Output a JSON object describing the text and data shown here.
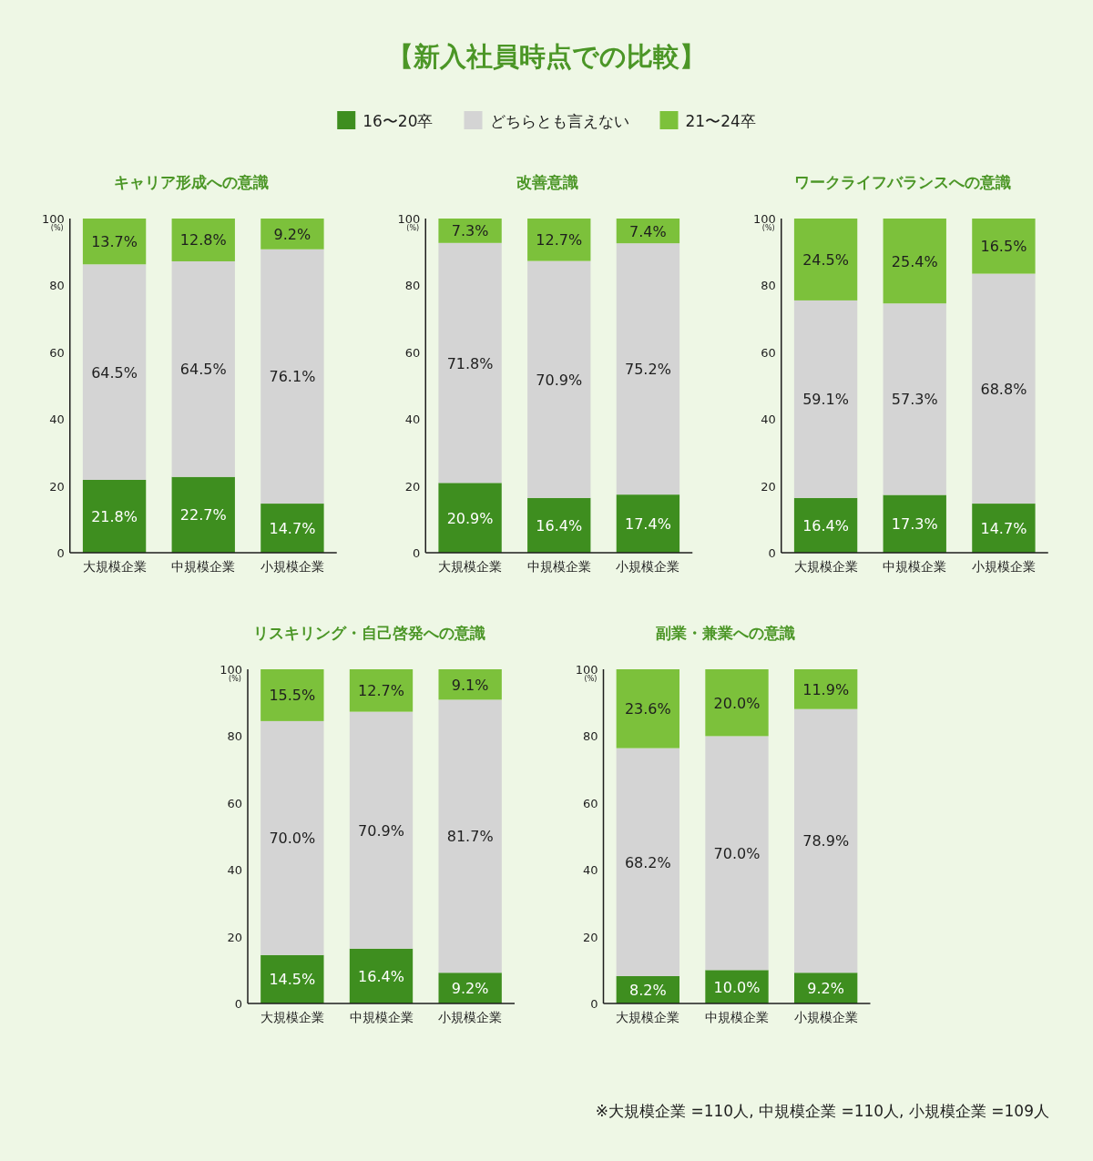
{
  "chart_data": [
    {
      "type": "other",
      "title": "【新入社員時点での比較】",
      "annotations": [
        "※大規模企業 =110人, 中規模企業 =110人, 小規模企業 =109人"
      ]
    },
    {
      "type": "bar",
      "title": "キャリア形成への意識",
      "stacked": true,
      "legend": "top",
      "categories": [
        "大規模企業",
        "中規模企業",
        "小規模企業"
      ],
      "ylim": [
        0,
        100
      ],
      "yticks": [
        0,
        20,
        40,
        60,
        80,
        100
      ],
      "ylabel": "(%)",
      "series": [
        {
          "name": "16〜20卒",
          "color": "#3e8e1f",
          "values": [
            21.8,
            22.7,
            14.7
          ],
          "value_labels": [
            "21.8%",
            "22.7%",
            "14.7%"
          ]
        },
        {
          "name": "どちらとも言えない",
          "color": "#d4d4d4",
          "values": [
            64.5,
            64.5,
            76.1
          ],
          "value_labels": [
            "64.5%",
            "64.5%",
            "76.1%"
          ]
        },
        {
          "name": "21〜24卒",
          "color": "#7cc13b",
          "values": [
            13.7,
            12.8,
            9.2
          ],
          "value_labels": [
            "13.7%",
            "12.8%",
            "9.2%"
          ]
        }
      ]
    },
    {
      "type": "bar",
      "title": "改善意識",
      "stacked": true,
      "categories": [
        "大規模企業",
        "中規模企業",
        "小規模企業"
      ],
      "ylim": [
        0,
        100
      ],
      "yticks": [
        0,
        20,
        40,
        60,
        80,
        100
      ],
      "ylabel": "(%)",
      "series": [
        {
          "color": "#3e8e1f",
          "values": [
            20.9,
            16.4,
            17.4
          ],
          "value_labels": [
            "20.9%",
            "16.4%",
            "17.4%"
          ]
        },
        {
          "color": "#d4d4d4",
          "values": [
            71.8,
            70.9,
            75.2
          ],
          "value_labels": [
            "71.8%",
            "70.9%",
            "75.2%"
          ]
        },
        {
          "color": "#7cc13b",
          "values": [
            7.3,
            12.7,
            7.4
          ],
          "value_labels": [
            "7.3%",
            "12.7%",
            "7.4%"
          ]
        }
      ]
    },
    {
      "type": "bar",
      "title": "ワークライフバランスへの意識",
      "stacked": true,
      "categories": [
        "大規模企業",
        "中規模企業",
        "小規模企業"
      ],
      "ylim": [
        0,
        100
      ],
      "yticks": [
        0,
        20,
        40,
        60,
        80,
        100
      ],
      "ylabel": "(%)",
      "series": [
        {
          "color": "#3e8e1f",
          "values": [
            16.4,
            17.3,
            14.7
          ],
          "value_labels": [
            "16.4%",
            "17.3%",
            "14.7%"
          ]
        },
        {
          "color": "#d4d4d4",
          "values": [
            59.1,
            57.3,
            68.8
          ],
          "value_labels": [
            "59.1%",
            "57.3%",
            "68.8%"
          ]
        },
        {
          "color": "#7cc13b",
          "values": [
            24.5,
            25.4,
            16.5
          ],
          "value_labels": [
            "24.5%",
            "25.4%",
            "16.5%"
          ]
        }
      ]
    },
    {
      "type": "bar",
      "title": "リスキリング・自己啓発への意識",
      "stacked": true,
      "categories": [
        "大規模企業",
        "中規模企業",
        "小規模企業"
      ],
      "ylim": [
        0,
        100
      ],
      "yticks": [
        0,
        20,
        40,
        60,
        80,
        100
      ],
      "ylabel": "(%)",
      "series": [
        {
          "color": "#3e8e1f",
          "values": [
            14.5,
            16.4,
            9.2
          ],
          "value_labels": [
            "14.5%",
            "16.4%",
            "9.2%"
          ]
        },
        {
          "color": "#d4d4d4",
          "values": [
            70.0,
            70.9,
            81.7
          ],
          "value_labels": [
            "70.0%",
            "70.9%",
            "81.7%"
          ]
        },
        {
          "color": "#7cc13b",
          "values": [
            15.5,
            12.7,
            9.1
          ],
          "value_labels": [
            "15.5%",
            "12.7%",
            "9.1%"
          ]
        }
      ]
    },
    {
      "type": "bar",
      "title": "副業・兼業への意識",
      "stacked": true,
      "categories": [
        "大規模企業",
        "中規模企業",
        "小規模企業"
      ],
      "ylim": [
        0,
        100
      ],
      "yticks": [
        0,
        20,
        40,
        60,
        80,
        100
      ],
      "ylabel": "(%)",
      "series": [
        {
          "color": "#3e8e1f",
          "values": [
            8.2,
            10.0,
            9.2
          ],
          "value_labels": [
            "8.2%",
            "10.0%",
            "9.2%"
          ]
        },
        {
          "color": "#d4d4d4",
          "values": [
            68.2,
            70.0,
            78.9
          ],
          "value_labels": [
            "68.2%",
            "70.0%",
            "78.9%"
          ]
        },
        {
          "color": "#7cc13b",
          "values": [
            23.6,
            20.0,
            11.9
          ],
          "value_labels": [
            "23.6%",
            "20.0%",
            "11.9%"
          ]
        }
      ]
    }
  ]
}
